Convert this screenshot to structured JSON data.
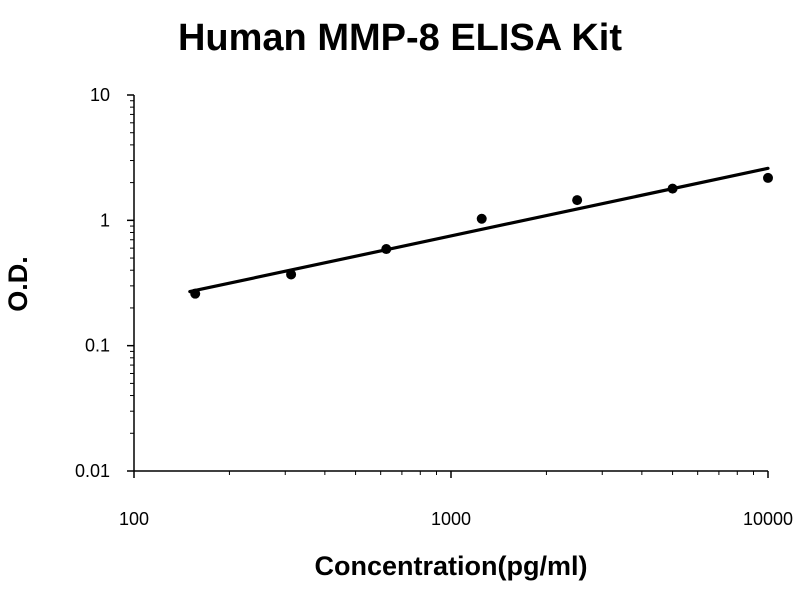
{
  "chart_data": {
    "type": "scatter",
    "title": "Human MMP-8 ELISA Kit",
    "xlabel": "Concentration(pg/ml)",
    "ylabel": "O.D.",
    "xscale": "log",
    "yscale": "log",
    "xlim": [
      100,
      10000
    ],
    "ylim": [
      0.01,
      10
    ],
    "xticks": [
      100,
      1000,
      10000
    ],
    "xtick_labels": [
      "100",
      "1000",
      "10000"
    ],
    "yticks": [
      0.01,
      0.1,
      1,
      10
    ],
    "ytick_labels": [
      "0.01",
      "0.1",
      "1",
      "10"
    ],
    "grid": false,
    "legend": "none",
    "series": [
      {
        "kind": "points",
        "points": [
          [
            156,
            0.26
          ],
          [
            313,
            0.37
          ],
          [
            625,
            0.59
          ],
          [
            1250,
            1.03
          ],
          [
            2500,
            1.45
          ],
          [
            5000,
            1.79
          ],
          [
            10000,
            2.18
          ]
        ]
      },
      {
        "kind": "trendline",
        "points": [
          [
            150,
            0.27
          ],
          [
            10000,
            2.6
          ]
        ]
      }
    ],
    "colors": {
      "points": "#000000",
      "trendline": "#000000",
      "axes": "#000000"
    }
  }
}
